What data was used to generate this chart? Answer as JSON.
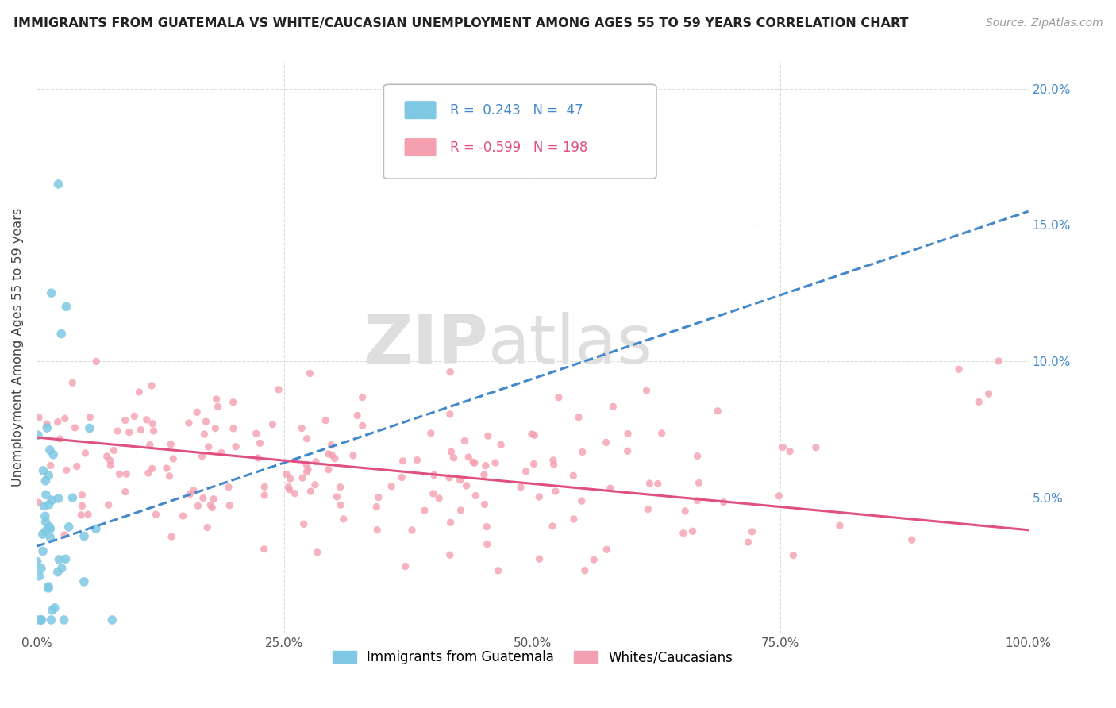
{
  "title": "IMMIGRANTS FROM GUATEMALA VS WHITE/CAUCASIAN UNEMPLOYMENT AMONG AGES 55 TO 59 YEARS CORRELATION CHART",
  "source": "Source: ZipAtlas.com",
  "ylabel": "Unemployment Among Ages 55 to 59 years",
  "xlim": [
    0,
    1.0
  ],
  "ylim": [
    0,
    0.21
  ],
  "xtick_vals": [
    0.0,
    0.25,
    0.5,
    0.75,
    1.0
  ],
  "xtick_labels": [
    "0.0%",
    "25.0%",
    "50.0%",
    "75.0%",
    "100.0%"
  ],
  "ytick_vals": [
    0.0,
    0.05,
    0.1,
    0.15,
    0.2
  ],
  "ytick_labels_right": [
    "",
    "5.0%",
    "10.0%",
    "15.0%",
    "20.0%"
  ],
  "blue_R": 0.243,
  "blue_N": 47,
  "pink_R": -0.599,
  "pink_N": 198,
  "blue_color": "#7ec8e3",
  "pink_color": "#f4a0b0",
  "blue_line_color": "#4488cc",
  "pink_line_color": "#e05080",
  "blue_trend_x": [
    0.0,
    1.0
  ],
  "blue_trend_y": [
    0.032,
    0.155
  ],
  "pink_trend_x": [
    0.0,
    1.0
  ],
  "pink_trend_y": [
    0.072,
    0.038
  ],
  "watermark_zip": "ZIP",
  "watermark_atlas": "atlas",
  "legend_label_blue": "Immigrants from Guatemala",
  "legend_label_pink": "Whites/Caucasians",
  "right_axis_color": "#4488cc"
}
